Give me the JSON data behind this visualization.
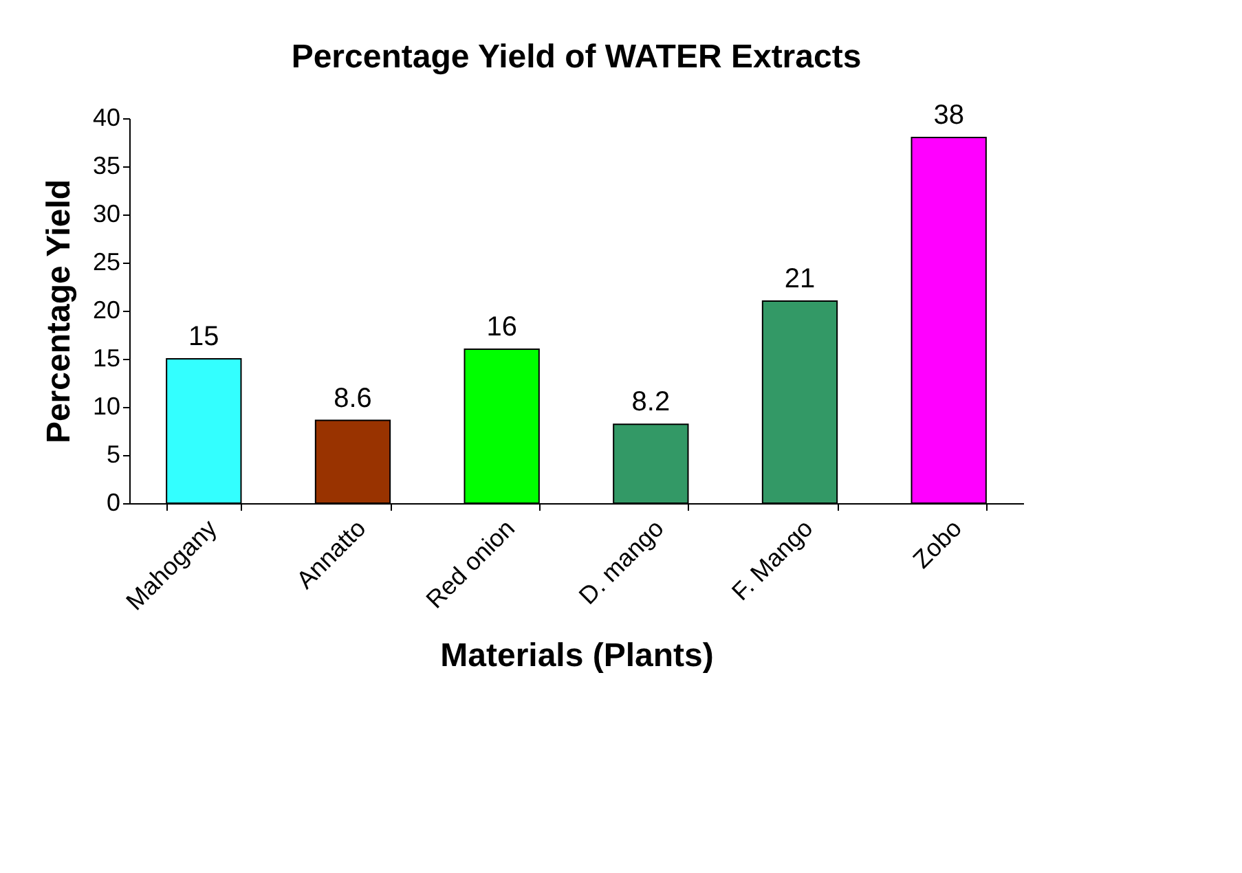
{
  "chart_data": {
    "type": "bar",
    "title": "Percentage Yield of WATER Extracts",
    "xlabel": "Materials (Plants)",
    "ylabel": "Percentage Yield",
    "categories": [
      "Mahogany",
      "Annatto",
      "Red onion",
      "D. mango",
      "F. Mango",
      "Zobo"
    ],
    "values": [
      15,
      8.6,
      16,
      8.2,
      21,
      38
    ],
    "colors": [
      "#33ffff",
      "#993300",
      "#00ff00",
      "#339966",
      "#339966",
      "#ff00ff"
    ],
    "ylim": [
      0,
      40
    ],
    "yticks": [
      0,
      5,
      10,
      15,
      20,
      25,
      30,
      35,
      40
    ],
    "grid": false,
    "data_labels": true
  }
}
